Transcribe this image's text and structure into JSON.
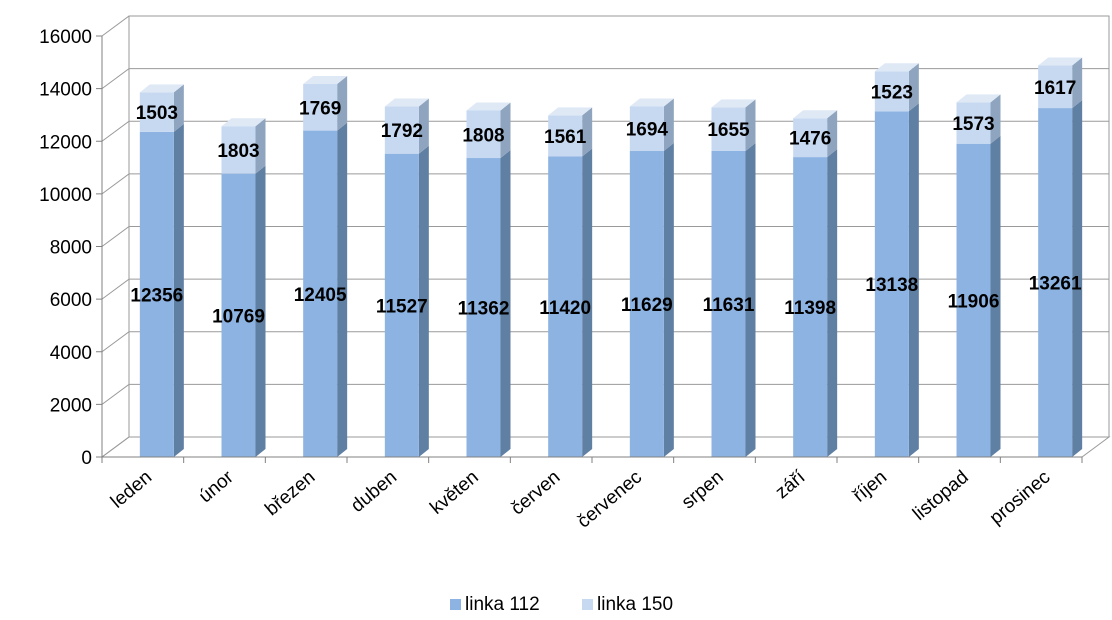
{
  "chart_data": {
    "type": "bar",
    "stacked": true,
    "three_d": true,
    "categories": [
      "leden",
      "únor",
      "březen",
      "duben",
      "květen",
      "červen",
      "červenec",
      "srpen",
      "září",
      "říjen",
      "listopad",
      "prosinec"
    ],
    "series": [
      {
        "name": "linka 112",
        "values": [
          12356,
          10769,
          12405,
          11527,
          11362,
          11420,
          11629,
          11631,
          11398,
          13138,
          11906,
          13261
        ]
      },
      {
        "name": "linka 150",
        "values": [
          1503,
          1803,
          1769,
          1792,
          1808,
          1561,
          1694,
          1655,
          1476,
          1523,
          1573,
          1617
        ]
      }
    ],
    "ylim": [
      0,
      16000
    ],
    "yticks": [
      "0",
      "2000",
      "4000",
      "6000",
      "8000",
      "10000",
      "12000",
      "14000",
      "16000"
    ],
    "grid": true,
    "legend_position": "bottom",
    "colors": {
      "linka 112": "#8db3e2",
      "linka 150": "#c6d9f1"
    }
  }
}
